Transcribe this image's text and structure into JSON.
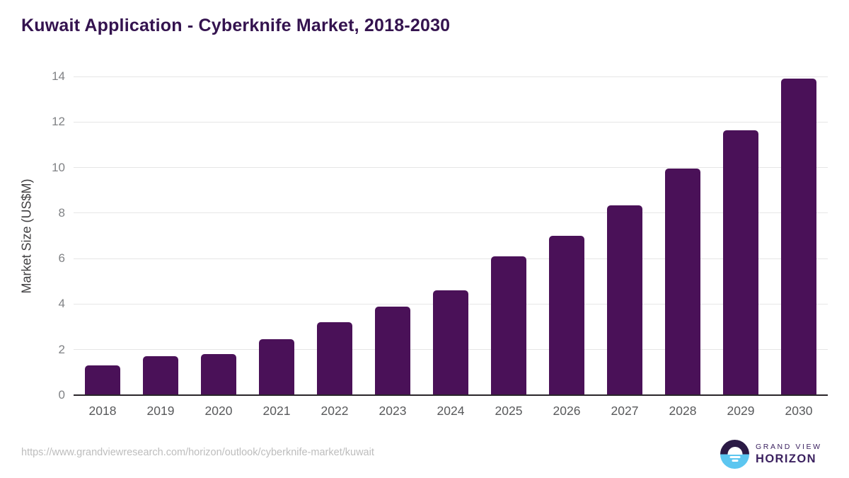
{
  "title": "Kuwait Application - Cyberknife Market, 2018-2030",
  "colors": {
    "background": "#ffffff",
    "bar": "#4a1158",
    "title_text": "#34134f",
    "grid": "#e6e6e6",
    "baseline": "#29252a",
    "tick_text": "#808285",
    "axis_label_text": "#414042",
    "xaxis_text": "#58595b",
    "url_text": "#bdbdbd",
    "logo_dark": "#2b1a45",
    "logo_blue": "#5cc6f0",
    "logo_text": "#3c2260"
  },
  "chart_data": {
    "type": "bar",
    "title": "Kuwait Application - Cyberknife Market, 2018-2030",
    "categories": [
      "2018",
      "2019",
      "2020",
      "2021",
      "2022",
      "2023",
      "2024",
      "2025",
      "2026",
      "2027",
      "2028",
      "2029",
      "2030"
    ],
    "values": [
      1.3,
      1.7,
      1.8,
      2.45,
      3.2,
      3.9,
      4.6,
      6.1,
      7.0,
      8.35,
      9.95,
      11.65,
      13.9
    ],
    "xlabel": "",
    "ylabel": "Market Size (US$M)",
    "ylim": [
      0,
      14
    ],
    "ytick_step": 2,
    "yticks": [
      0,
      2,
      4,
      6,
      8,
      10,
      12,
      14
    ],
    "grid": "horizontal-only",
    "legend": "none",
    "bar_color": "#4a1158"
  },
  "footer": {
    "source_url": "https://www.grandviewresearch.com/horizon/outlook/cyberknife-market/kuwait",
    "logo": {
      "line1": "GRAND VIEW",
      "line2": "HORIZON"
    }
  }
}
